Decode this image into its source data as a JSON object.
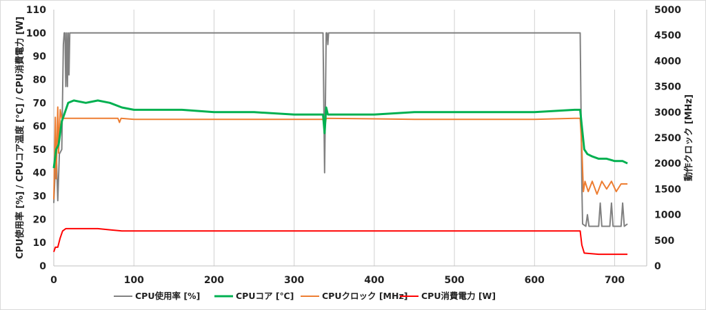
{
  "chart_data": {
    "type": "line",
    "title": "",
    "xlabel": "",
    "ylabel_left": "CPU使用率 [%] / CPUコア温度 [℃] / CPU消費電力 [W]",
    "ylabel_right": "動作クロック [MHz]",
    "xlim": [
      0,
      740
    ],
    "ylim_left": [
      0,
      110
    ],
    "ylim_right": [
      0,
      5000
    ],
    "x_ticks": [
      "0",
      "100",
      "200",
      "300",
      "400",
      "500",
      "600",
      "700"
    ],
    "y_left_ticks": [
      "0",
      "10",
      "20",
      "30",
      "40",
      "50",
      "60",
      "70",
      "80",
      "90",
      "100",
      "110"
    ],
    "y_right_ticks": [
      "0",
      "500",
      "1000",
      "1500",
      "2000",
      "2500",
      "3000",
      "3500",
      "4000",
      "4500",
      "5000"
    ],
    "grid": "vertical",
    "legend_position": "bottom",
    "series": [
      {
        "name": "CPU使用率 [%]",
        "axis": "left",
        "color": "#808080",
        "points": [
          [
            0,
            27
          ],
          [
            3,
            50
          ],
          [
            5,
            28
          ],
          [
            7,
            48
          ],
          [
            10,
            50
          ],
          [
            12,
            95
          ],
          [
            13,
            100
          ],
          [
            14,
            100
          ],
          [
            15,
            77
          ],
          [
            16,
            100
          ],
          [
            17,
            77
          ],
          [
            18,
            100
          ],
          [
            19,
            82
          ],
          [
            20,
            100
          ],
          [
            40,
            100
          ],
          [
            100,
            100
          ],
          [
            200,
            100
          ],
          [
            300,
            100
          ],
          [
            336,
            100
          ],
          [
            338,
            40
          ],
          [
            339,
            70
          ],
          [
            340,
            100
          ],
          [
            341,
            100
          ],
          [
            342,
            95
          ],
          [
            343,
            100
          ],
          [
            400,
            100
          ],
          [
            500,
            100
          ],
          [
            600,
            100
          ],
          [
            650,
            100
          ],
          [
            657,
            100
          ],
          [
            659,
            35
          ],
          [
            660,
            18
          ],
          [
            664,
            17
          ],
          [
            666,
            22
          ],
          [
            668,
            17
          ],
          [
            680,
            17
          ],
          [
            682,
            27
          ],
          [
            684,
            17
          ],
          [
            694,
            17
          ],
          [
            696,
            27
          ],
          [
            698,
            17
          ],
          [
            708,
            17
          ],
          [
            710,
            27
          ],
          [
            712,
            17
          ],
          [
            716,
            18
          ]
        ]
      },
      {
        "name": "CPUコア [℃]",
        "axis": "left",
        "color": "#00b050",
        "points": [
          [
            0,
            42
          ],
          [
            3,
            50
          ],
          [
            6,
            52
          ],
          [
            10,
            62
          ],
          [
            14,
            66
          ],
          [
            18,
            70
          ],
          [
            25,
            71
          ],
          [
            40,
            70
          ],
          [
            55,
            71
          ],
          [
            70,
            70
          ],
          [
            85,
            68
          ],
          [
            100,
            67
          ],
          [
            130,
            67
          ],
          [
            160,
            67
          ],
          [
            200,
            66
          ],
          [
            250,
            66
          ],
          [
            300,
            65
          ],
          [
            336,
            65
          ],
          [
            338,
            57
          ],
          [
            340,
            68
          ],
          [
            342,
            65
          ],
          [
            360,
            65
          ],
          [
            400,
            65
          ],
          [
            450,
            66
          ],
          [
            500,
            66
          ],
          [
            550,
            66
          ],
          [
            600,
            66
          ],
          [
            650,
            67
          ],
          [
            657,
            67
          ],
          [
            659,
            60
          ],
          [
            662,
            50
          ],
          [
            666,
            48
          ],
          [
            672,
            47
          ],
          [
            680,
            46
          ],
          [
            690,
            46
          ],
          [
            700,
            45
          ],
          [
            710,
            45
          ],
          [
            716,
            44
          ]
        ]
      },
      {
        "name": "CPUクロック [MHz]",
        "axis": "right",
        "color": "#ed7d31",
        "points": [
          [
            0,
            1300
          ],
          [
            2,
            2900
          ],
          [
            3,
            1700
          ],
          [
            5,
            3100
          ],
          [
            6,
            2200
          ],
          [
            8,
            3050
          ],
          [
            10,
            2880
          ],
          [
            14,
            2880
          ],
          [
            40,
            2880
          ],
          [
            80,
            2880
          ],
          [
            82,
            2800
          ],
          [
            84,
            2880
          ],
          [
            100,
            2860
          ],
          [
            150,
            2860
          ],
          [
            200,
            2860
          ],
          [
            250,
            2860
          ],
          [
            300,
            2860
          ],
          [
            336,
            2860
          ],
          [
            338,
            2700
          ],
          [
            340,
            2880
          ],
          [
            400,
            2870
          ],
          [
            450,
            2860
          ],
          [
            500,
            2860
          ],
          [
            550,
            2860
          ],
          [
            600,
            2860
          ],
          [
            650,
            2880
          ],
          [
            657,
            2880
          ],
          [
            659,
            2300
          ],
          [
            661,
            1450
          ],
          [
            663,
            1650
          ],
          [
            667,
            1450
          ],
          [
            672,
            1650
          ],
          [
            678,
            1400
          ],
          [
            684,
            1650
          ],
          [
            690,
            1500
          ],
          [
            696,
            1650
          ],
          [
            702,
            1450
          ],
          [
            708,
            1600
          ],
          [
            716,
            1600
          ]
        ]
      },
      {
        "name": "CPU消費電力 [W]",
        "axis": "left",
        "color": "#ff0000",
        "points": [
          [
            0,
            6
          ],
          [
            2,
            8
          ],
          [
            5,
            8
          ],
          [
            8,
            12
          ],
          [
            11,
            15
          ],
          [
            15,
            16
          ],
          [
            25,
            16
          ],
          [
            40,
            16
          ],
          [
            55,
            16
          ],
          [
            70,
            15.5
          ],
          [
            85,
            15
          ],
          [
            100,
            15
          ],
          [
            150,
            15
          ],
          [
            200,
            15
          ],
          [
            250,
            15
          ],
          [
            300,
            15
          ],
          [
            350,
            15
          ],
          [
            400,
            15
          ],
          [
            450,
            15
          ],
          [
            500,
            15
          ],
          [
            550,
            15
          ],
          [
            600,
            15
          ],
          [
            650,
            15
          ],
          [
            657,
            15
          ],
          [
            659,
            9
          ],
          [
            662,
            5.5
          ],
          [
            680,
            5
          ],
          [
            700,
            5
          ],
          [
            716,
            5
          ]
        ]
      }
    ]
  }
}
